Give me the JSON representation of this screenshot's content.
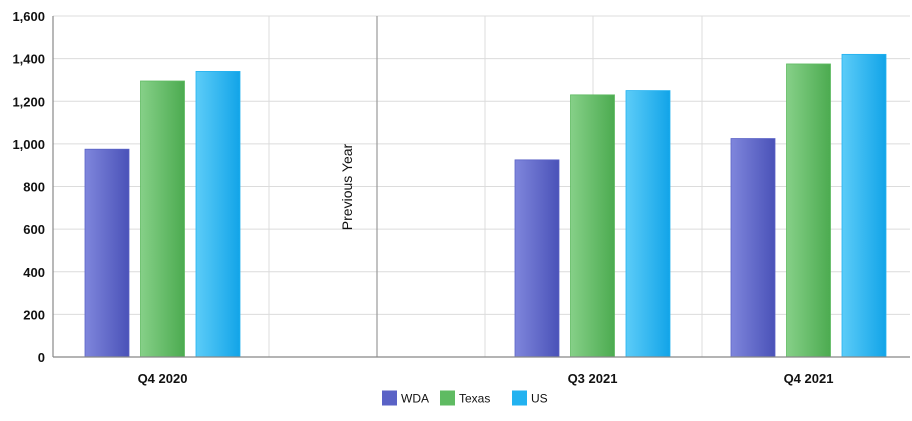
{
  "chart_data": {
    "type": "bar",
    "categories": [
      "Q4 2020",
      "",
      "Q3 2021",
      "Q4 2021"
    ],
    "series": [
      {
        "name": "WDA",
        "color": "#5a62c6",
        "values": [
          975,
          null,
          925,
          1025
        ]
      },
      {
        "name": "Texas",
        "color": "#5fbb62",
        "values": [
          1295,
          null,
          1230,
          1375
        ]
      },
      {
        "name": "US",
        "color": "#22b2f0",
        "values": [
          1340,
          null,
          1250,
          1420
        ]
      }
    ],
    "ylim": [
      0,
      1600
    ],
    "yticks": [
      "0",
      "200",
      "400",
      "600",
      "800",
      "1,000",
      "1,200",
      "1,400",
      "1,600"
    ],
    "ytick_values": [
      0,
      200,
      400,
      600,
      800,
      1000,
      1200,
      1400,
      1600
    ],
    "divider_label": "Previous Year",
    "grid": true,
    "legend_position": "bottom"
  }
}
